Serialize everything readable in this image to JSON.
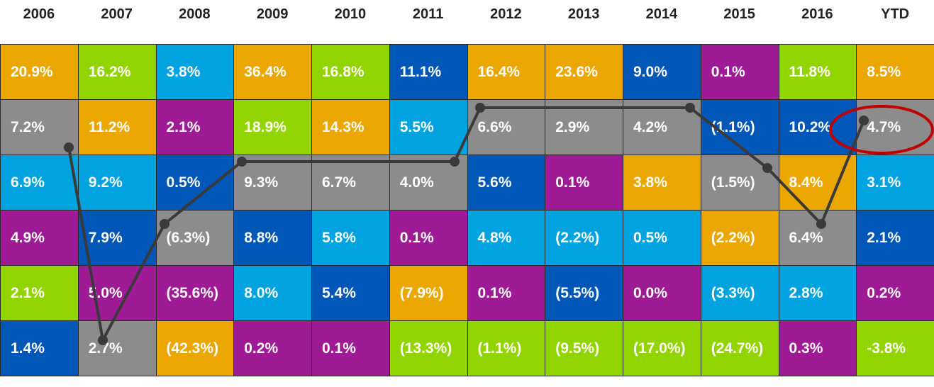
{
  "header": [
    "2006",
    "2007",
    "2008",
    "2009",
    "2010",
    "2011",
    "2012",
    "2013",
    "2014",
    "2015",
    "2016",
    "YTD"
  ],
  "rows": [
    [
      {
        "text": "20.9%",
        "color": "#eba600"
      },
      {
        "text": "16.2%",
        "color": "#92d400"
      },
      {
        "text": "3.8%",
        "color": "#00a3e0"
      },
      {
        "text": "36.4%",
        "color": "#eba600"
      },
      {
        "text": "16.8%",
        "color": "#92d400"
      },
      {
        "text": "11.1%",
        "color": "#0057b8"
      },
      {
        "text": "16.4%",
        "color": "#eba600"
      },
      {
        "text": "23.6%",
        "color": "#eba600"
      },
      {
        "text": "9.0%",
        "color": "#0057b8"
      },
      {
        "text": "0.1%",
        "color": "#9e1b95"
      },
      {
        "text": "11.8%",
        "color": "#92d400"
      },
      {
        "text": "8.5%",
        "color": "#eba600"
      }
    ],
    [
      {
        "text": "7.2%",
        "color": "#8c8c8c"
      },
      {
        "text": "11.2%",
        "color": "#eba600"
      },
      {
        "text": "2.1%",
        "color": "#9e1b95"
      },
      {
        "text": "18.9%",
        "color": "#92d400"
      },
      {
        "text": "14.3%",
        "color": "#eba600"
      },
      {
        "text": "5.5%",
        "color": "#00a3e0"
      },
      {
        "text": "6.6%",
        "color": "#8c8c8c"
      },
      {
        "text": "2.9%",
        "color": "#8c8c8c"
      },
      {
        "text": "4.2%",
        "color": "#8c8c8c"
      },
      {
        "text": "(1.1%)",
        "color": "#0057b8"
      },
      {
        "text": "10.2%",
        "color": "#0057b8"
      },
      {
        "text": "4.7%",
        "color": "#8c8c8c"
      }
    ],
    [
      {
        "text": "6.9%",
        "color": "#00a3e0"
      },
      {
        "text": "9.2%",
        "color": "#00a3e0"
      },
      {
        "text": "0.5%",
        "color": "#0057b8"
      },
      {
        "text": "9.3%",
        "color": "#8c8c8c"
      },
      {
        "text": "6.7%",
        "color": "#8c8c8c"
      },
      {
        "text": "4.0%",
        "color": "#8c8c8c"
      },
      {
        "text": "5.6%",
        "color": "#0057b8"
      },
      {
        "text": "0.1%",
        "color": "#9e1b95"
      },
      {
        "text": "3.8%",
        "color": "#eba600"
      },
      {
        "text": "(1.5%)",
        "color": "#8c8c8c"
      },
      {
        "text": "8.4%",
        "color": "#eba600"
      },
      {
        "text": "3.1%",
        "color": "#00a3e0"
      }
    ],
    [
      {
        "text": "4.9%",
        "color": "#9e1b95"
      },
      {
        "text": "7.9%",
        "color": "#0057b8"
      },
      {
        "text": "(6.3%)",
        "color": "#8c8c8c"
      },
      {
        "text": "8.8%",
        "color": "#0057b8"
      },
      {
        "text": "5.8%",
        "color": "#00a3e0"
      },
      {
        "text": "0.1%",
        "color": "#9e1b95"
      },
      {
        "text": "4.8%",
        "color": "#00a3e0"
      },
      {
        "text": "(2.2%)",
        "color": "#00a3e0"
      },
      {
        "text": "0.5%",
        "color": "#00a3e0"
      },
      {
        "text": "(2.2%)",
        "color": "#eba600"
      },
      {
        "text": "6.4%",
        "color": "#8c8c8c"
      },
      {
        "text": "2.1%",
        "color": "#0057b8"
      }
    ],
    [
      {
        "text": "2.1%",
        "color": "#92d400"
      },
      {
        "text": "5.0%",
        "color": "#9e1b95"
      },
      {
        "text": "(35.6%)",
        "color": "#9e1b95"
      },
      {
        "text": "8.0%",
        "color": "#00a3e0"
      },
      {
        "text": "5.4%",
        "color": "#0057b8"
      },
      {
        "text": "(7.9%)",
        "color": "#eba600"
      },
      {
        "text": "0.1%",
        "color": "#9e1b95"
      },
      {
        "text": "(5.5%)",
        "color": "#0057b8"
      },
      {
        "text": "0.0%",
        "color": "#9e1b95"
      },
      {
        "text": "(3.3%)",
        "color": "#00a3e0"
      },
      {
        "text": "2.8%",
        "color": "#00a3e0"
      },
      {
        "text": "0.2%",
        "color": "#9e1b95"
      }
    ],
    [
      {
        "text": "1.4%",
        "color": "#0057b8"
      },
      {
        "text": "2.7%",
        "color": "#8c8c8c"
      },
      {
        "text": "(42.3%)",
        "color": "#eba600"
      },
      {
        "text": "0.2%",
        "color": "#9e1b95"
      },
      {
        "text": "0.1%",
        "color": "#9e1b95"
      },
      {
        "text": "(13.3%)",
        "color": "#92d400"
      },
      {
        "text": "(1.1%)",
        "color": "#92d400"
      },
      {
        "text": "(9.5%)",
        "color": "#92d400"
      },
      {
        "text": "(17.0%)",
        "color": "#92d400"
      },
      {
        "text": "(24.7%)",
        "color": "#92d400"
      },
      {
        "text": "0.3%",
        "color": "#9e1b95"
      },
      {
        "text": "-3.8%",
        "color": "#92d400"
      }
    ]
  ]
}
